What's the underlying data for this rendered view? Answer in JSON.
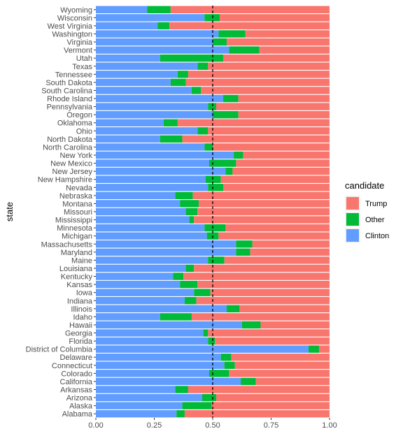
{
  "chart_data": {
    "type": "bar",
    "orientation": "horizontal",
    "stacked": true,
    "ylabel": "state",
    "xlim": [
      0,
      1
    ],
    "x_ticks": [
      "0.00",
      "0.25",
      "0.50",
      "0.75",
      "1.00"
    ],
    "reference_line": {
      "x": 0.5,
      "style": "dashed"
    },
    "legend": {
      "title": "candidate",
      "position": "right",
      "order": [
        "Trump",
        "Other",
        "Clinton"
      ]
    },
    "colors": {
      "Clinton": "#619CFF",
      "Other": "#00BA38",
      "Trump": "#F8766D"
    },
    "categories": [
      "Wyoming",
      "Wisconsin",
      "West Virginia",
      "Washington",
      "Virginia",
      "Vermont",
      "Utah",
      "Texas",
      "Tennessee",
      "South Dakota",
      "South Carolina",
      "Rhode Island",
      "Pennsylvania",
      "Oregon",
      "Oklahoma",
      "Ohio",
      "North Dakota",
      "North Carolina",
      "New York",
      "New Mexico",
      "New Jersey",
      "New Hampshire",
      "Nevada",
      "Nebraska",
      "Montana",
      "Missouri",
      "Mississippi",
      "Minnesota",
      "Michigan",
      "Massachusetts",
      "Maryland",
      "Maine",
      "Louisiana",
      "Kentucky",
      "Kansas",
      "Iowa",
      "Indiana",
      "Illinois",
      "Idaho",
      "Hawaii",
      "Georgia",
      "Florida",
      "District of Columbia",
      "Delaware",
      "Connecticut",
      "Colorado",
      "California",
      "Arkansas",
      "Arizona",
      "Alaska",
      "Alabama"
    ],
    "series": [
      {
        "name": "Clinton",
        "values": [
          0.22,
          0.465,
          0.265,
          0.525,
          0.5,
          0.57,
          0.275,
          0.435,
          0.35,
          0.32,
          0.41,
          0.545,
          0.48,
          0.5,
          0.29,
          0.435,
          0.275,
          0.465,
          0.59,
          0.485,
          0.555,
          0.47,
          0.48,
          0.34,
          0.36,
          0.385,
          0.4,
          0.465,
          0.475,
          0.6,
          0.6,
          0.48,
          0.385,
          0.33,
          0.36,
          0.42,
          0.38,
          0.56,
          0.275,
          0.625,
          0.46,
          0.48,
          0.91,
          0.535,
          0.55,
          0.485,
          0.62,
          0.34,
          0.455,
          0.37,
          0.345
        ]
      },
      {
        "name": "Other",
        "values": [
          0.1,
          0.065,
          0.05,
          0.115,
          0.06,
          0.13,
          0.27,
          0.045,
          0.045,
          0.065,
          0.04,
          0.065,
          0.035,
          0.11,
          0.06,
          0.045,
          0.095,
          0.035,
          0.04,
          0.115,
          0.03,
          0.065,
          0.065,
          0.075,
          0.08,
          0.05,
          0.02,
          0.09,
          0.05,
          0.07,
          0.06,
          0.07,
          0.035,
          0.045,
          0.075,
          0.07,
          0.05,
          0.055,
          0.135,
          0.08,
          0.02,
          0.03,
          0.045,
          0.045,
          0.045,
          0.085,
          0.065,
          0.055,
          0.06,
          0.125,
          0.035
        ]
      },
      {
        "name": "Trump",
        "values": [
          0.68,
          0.47,
          0.685,
          0.36,
          0.44,
          0.3,
          0.455,
          0.52,
          0.605,
          0.615,
          0.55,
          0.39,
          0.485,
          0.39,
          0.65,
          0.52,
          0.63,
          0.5,
          0.37,
          0.4,
          0.415,
          0.465,
          0.455,
          0.585,
          0.56,
          0.565,
          0.58,
          0.445,
          0.475,
          0.33,
          0.34,
          0.45,
          0.58,
          0.625,
          0.565,
          0.51,
          0.57,
          0.385,
          0.59,
          0.295,
          0.52,
          0.49,
          0.045,
          0.42,
          0.405,
          0.43,
          0.315,
          0.605,
          0.485,
          0.505,
          0.62
        ]
      }
    ]
  }
}
